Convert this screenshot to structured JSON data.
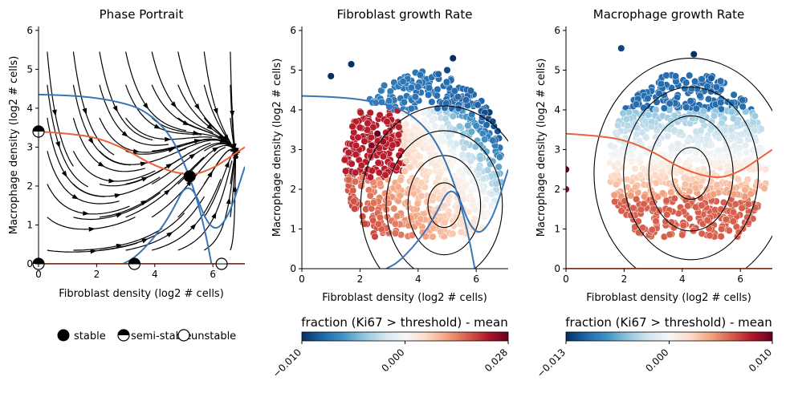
{
  "chart_data": [
    {
      "type": "line",
      "title": "Phase Portrait",
      "xlabel": "Fibroblast density (log2 # cells)",
      "ylabel": "Macrophage density (log2 # cells)",
      "xlim": [
        0,
        7.1
      ],
      "ylim": [
        0,
        6.1
      ],
      "xticks": [
        0,
        2,
        4,
        6
      ],
      "yticks": [
        0,
        1,
        2,
        3,
        4,
        5,
        6
      ],
      "series": [
        {
          "color": "#3a75b8",
          "x": [
            0,
            1,
            2,
            3,
            3.6,
            4.2,
            4.7,
            5.2,
            5.55,
            5.8,
            5.95
          ],
          "y": [
            4.35,
            4.33,
            4.27,
            4.12,
            3.95,
            3.6,
            3.1,
            2.25,
            1.4,
            0.6,
            0
          ]
        },
        {
          "color": "#3a75b8",
          "x": [
            2.9,
            3.3,
            3.9,
            4.5,
            5.2,
            5.9,
            6.5,
            7.1
          ],
          "y": [
            0,
            0.15,
            0.6,
            1.2,
            2.25,
            0.8,
            1.1,
            2.5
          ]
        },
        {
          "color": "#e8623a",
          "x": [
            0,
            1,
            2,
            3,
            4,
            5.2,
            6,
            6.6,
            7.1
          ],
          "y": [
            3.4,
            3.35,
            3.25,
            2.95,
            2.5,
            2.25,
            2.45,
            2.75,
            3.0
          ]
        },
        {
          "color": "#e8623a",
          "x": [
            0,
            7.1
          ],
          "y": [
            0,
            0
          ]
        }
      ],
      "fixed_points": [
        {
          "x": 5.2,
          "y": 2.25,
          "kind": "stable"
        },
        {
          "x": 0,
          "y": 3.4,
          "kind": "semi-stable"
        },
        {
          "x": 0,
          "y": 0,
          "kind": "semi-stable"
        },
        {
          "x": 3.3,
          "y": 0,
          "kind": "semi-stable"
        },
        {
          "x": 6.3,
          "y": 0,
          "kind": "unstable"
        }
      ],
      "legend": [
        "stable",
        "semi-stable",
        "unstable"
      ]
    },
    {
      "type": "scatter",
      "title": "Fibroblast growth Rate",
      "xlabel": "Fibroblast density (log2 # cells)",
      "ylabel": "Macrophage density (log2 # cells)",
      "xlim": [
        0,
        7.1
      ],
      "ylim": [
        0,
        6.1
      ],
      "xticks": [
        0,
        2,
        4,
        6
      ],
      "yticks": [
        0,
        1,
        2,
        3,
        4,
        5,
        6
      ],
      "colorbar": {
        "label": "fraction (Ki67 > threshold) - mean",
        "ticks": [
          "−0.010",
          "0.000",
          "0.028"
        ],
        "min": -0.01,
        "max": 0.028
      },
      "highlights": [
        {
          "x": 1.0,
          "y": 4.85,
          "v": -0.01
        },
        {
          "x": 1.7,
          "y": 5.15,
          "v": -0.01
        },
        {
          "x": 5.2,
          "y": 5.3,
          "v": -0.01
        },
        {
          "x": 5.0,
          "y": 5.0,
          "v": -0.009
        },
        {
          "x": 4.7,
          "y": 4.9,
          "v": -0.008
        },
        {
          "x": 2.6,
          "y": 3.4,
          "v": 0.028
        },
        {
          "x": 2.4,
          "y": 3.1,
          "v": 0.026
        },
        {
          "x": 2.8,
          "y": 3.2,
          "v": 0.024
        }
      ]
    },
    {
      "type": "scatter",
      "title": "Macrophage growth Rate",
      "xlabel": "Fibroblast density (log2 # cells)",
      "ylabel": "Macrophage density (log2 # cells)",
      "xlim": [
        0,
        7.1
      ],
      "ylim": [
        0,
        6.1
      ],
      "xticks": [
        0,
        2,
        4,
        6
      ],
      "yticks": [
        0,
        1,
        2,
        3,
        4,
        5,
        6
      ],
      "colorbar": {
        "label": "fraction (Ki67 > threshold) - mean",
        "ticks": [
          "−0.013",
          "0.000",
          "0.010"
        ],
        "min": -0.013,
        "max": 0.01
      },
      "highlights": [
        {
          "x": 4.4,
          "y": 5.4,
          "v": -0.013
        },
        {
          "x": 1.9,
          "y": 5.55,
          "v": -0.012
        },
        {
          "x": 5.0,
          "y": 4.8,
          "v": -0.011
        },
        {
          "x": 0,
          "y": 2.5,
          "v": 0.01
        },
        {
          "x": 0,
          "y": 2.0,
          "v": 0.009
        }
      ]
    }
  ]
}
